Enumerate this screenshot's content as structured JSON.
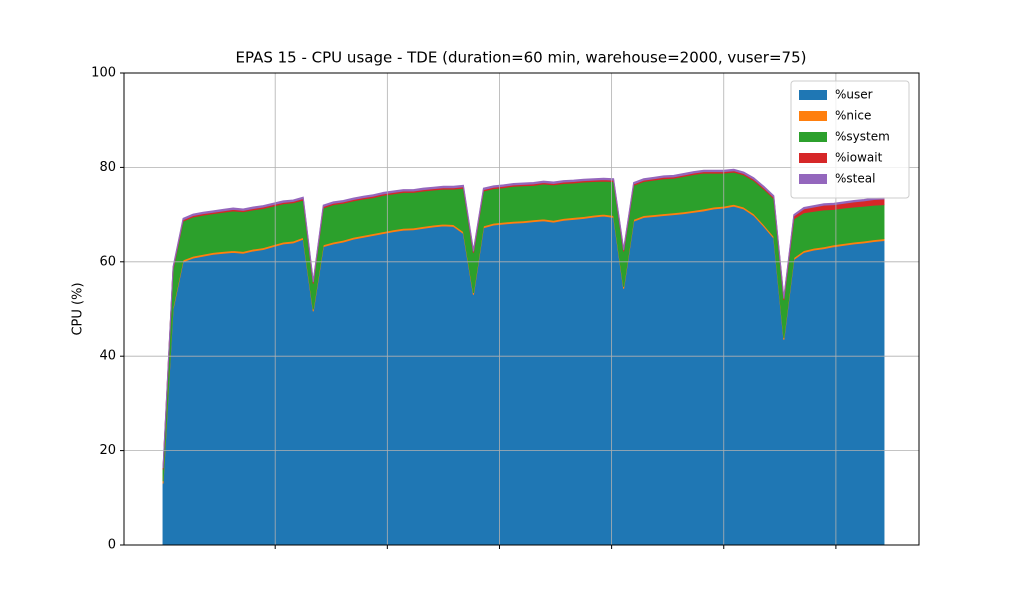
{
  "chart_data": {
    "type": "stackedarea",
    "title": "EPAS 15 - CPU usage - TDE (duration=60 min, warehouse=2000, vuser=75)",
    "ylabel": "CPU (%)",
    "ylim": [
      0,
      100
    ],
    "yticks": [
      0,
      20,
      40,
      60,
      80,
      100
    ],
    "xlim": [
      -3.9,
      75.5
    ],
    "xgrid": [
      11.2,
      22.4,
      33.6,
      44.8,
      56,
      67.2
    ],
    "grid": true,
    "legend": "upper right",
    "series": [
      {
        "name": "%user",
        "color": "#1f77b4",
        "values": [
          13,
          50,
          60,
          60.8,
          61.2,
          61.6,
          61.8,
          62,
          61.8,
          62.3,
          62.6,
          63.2,
          63.8,
          64,
          64.8,
          49.5,
          63.2,
          63.8,
          64.2,
          64.8,
          65.2,
          65.6,
          66,
          66.4,
          66.7,
          66.8,
          67.1,
          67.4,
          67.6,
          67.5,
          66,
          53,
          67.2,
          67.8,
          68,
          68.2,
          68.3,
          68.5,
          68.7,
          68.4,
          68.8,
          69,
          69.2,
          69.5,
          69.7,
          69.4,
          54.3,
          68.6,
          69.4,
          69.6,
          69.8,
          70,
          70.2,
          70.5,
          70.8,
          71.2,
          71.4,
          71.8,
          71.2,
          69.8,
          67.5,
          65,
          43.5,
          60.5,
          62,
          62.5,
          62.8,
          63.2,
          63.5,
          63.8,
          64,
          64.3,
          64.5
        ]
      },
      {
        "name": "%nice",
        "color": "#ff7f0e",
        "values": [
          0.5,
          0.4,
          0.4,
          0.4,
          0.4,
          0.4,
          0.4,
          0.4,
          0.4,
          0.4,
          0.4,
          0.4,
          0.4,
          0.4,
          0.4,
          0.4,
          0.4,
          0.4,
          0.4,
          0.4,
          0.4,
          0.4,
          0.4,
          0.4,
          0.4,
          0.4,
          0.4,
          0.4,
          0.4,
          0.4,
          0.4,
          0.4,
          0.4,
          0.4,
          0.4,
          0.4,
          0.4,
          0.4,
          0.4,
          0.4,
          0.4,
          0.4,
          0.4,
          0.4,
          0.4,
          0.4,
          0.4,
          0.4,
          0.4,
          0.4,
          0.4,
          0.4,
          0.4,
          0.4,
          0.4,
          0.4,
          0.4,
          0.4,
          0.4,
          0.4,
          0.4,
          0.4,
          0.4,
          0.4,
          0.4,
          0.4,
          0.4,
          0.4,
          0.4,
          0.4,
          0.4,
          0.4,
          0.4
        ]
      },
      {
        "name": "%system",
        "color": "#2ca02c",
        "values": [
          2.5,
          8,
          8.2,
          8.3,
          8.3,
          8.2,
          8.3,
          8.4,
          8.4,
          8.3,
          8.3,
          8.2,
          8.1,
          8.1,
          7.9,
          5.5,
          7.8,
          7.9,
          7.8,
          7.7,
          7.7,
          7.6,
          7.7,
          7.6,
          7.6,
          7.5,
          7.5,
          7.4,
          7.4,
          7.5,
          9.2,
          8.5,
          7.4,
          7.3,
          7.3,
          7.4,
          7.4,
          7.3,
          7.4,
          7.5,
          7.4,
          7.3,
          7.3,
          7.1,
          7,
          7.2,
          7.5,
          7.2,
          7.2,
          7.3,
          7.4,
          7.3,
          7.5,
          7.6,
          7.6,
          7.2,
          7,
          6.8,
          6.8,
          7,
          7.5,
          8,
          8,
          8.2,
          8,
          7.8,
          7.8,
          7.5,
          7.5,
          7.4,
          7.4,
          7.3,
          7.2
        ]
      },
      {
        "name": "%iowait",
        "color": "#d62728",
        "values": [
          0.3,
          0.3,
          0.3,
          0.3,
          0.3,
          0.3,
          0.3,
          0.3,
          0.3,
          0.3,
          0.3,
          0.3,
          0.3,
          0.3,
          0.3,
          0.3,
          0.3,
          0.3,
          0.3,
          0.3,
          0.3,
          0.3,
          0.3,
          0.3,
          0.3,
          0.3,
          0.3,
          0.3,
          0.3,
          0.3,
          0.3,
          0.3,
          0.3,
          0.3,
          0.3,
          0.3,
          0.3,
          0.3,
          0.3,
          0.3,
          0.3,
          0.3,
          0.3,
          0.3,
          0.3,
          0.3,
          0.3,
          0.3,
          0.3,
          0.3,
          0.3,
          0.3,
          0.3,
          0.3,
          0.3,
          0.3,
          0.3,
          0.3,
          0.3,
          0.3,
          0.3,
          0.3,
          0.3,
          0.6,
          0.8,
          0.9,
          1,
          1,
          1,
          1.1,
          1.1,
          1.2,
          1.2
        ]
      },
      {
        "name": "%steal",
        "color": "#9467bd",
        "values": [
          0.3,
          0.3,
          0.3,
          0.3,
          0.3,
          0.3,
          0.3,
          0.3,
          0.3,
          0.3,
          0.3,
          0.3,
          0.3,
          0.3,
          0.3,
          0.3,
          0.3,
          0.3,
          0.3,
          0.3,
          0.3,
          0.3,
          0.3,
          0.3,
          0.3,
          0.3,
          0.3,
          0.3,
          0.3,
          0.3,
          0.3,
          0.3,
          0.3,
          0.3,
          0.3,
          0.3,
          0.3,
          0.3,
          0.3,
          0.3,
          0.3,
          0.3,
          0.3,
          0.3,
          0.3,
          0.3,
          0.3,
          0.3,
          0.3,
          0.3,
          0.3,
          0.3,
          0.3,
          0.3,
          0.3,
          0.3,
          0.3,
          0.3,
          0.3,
          0.3,
          0.3,
          0.3,
          0.3,
          0.3,
          0.3,
          0.3,
          0.3,
          0.3,
          0.3,
          0.3,
          0.3,
          0.3,
          0.3
        ]
      }
    ]
  }
}
